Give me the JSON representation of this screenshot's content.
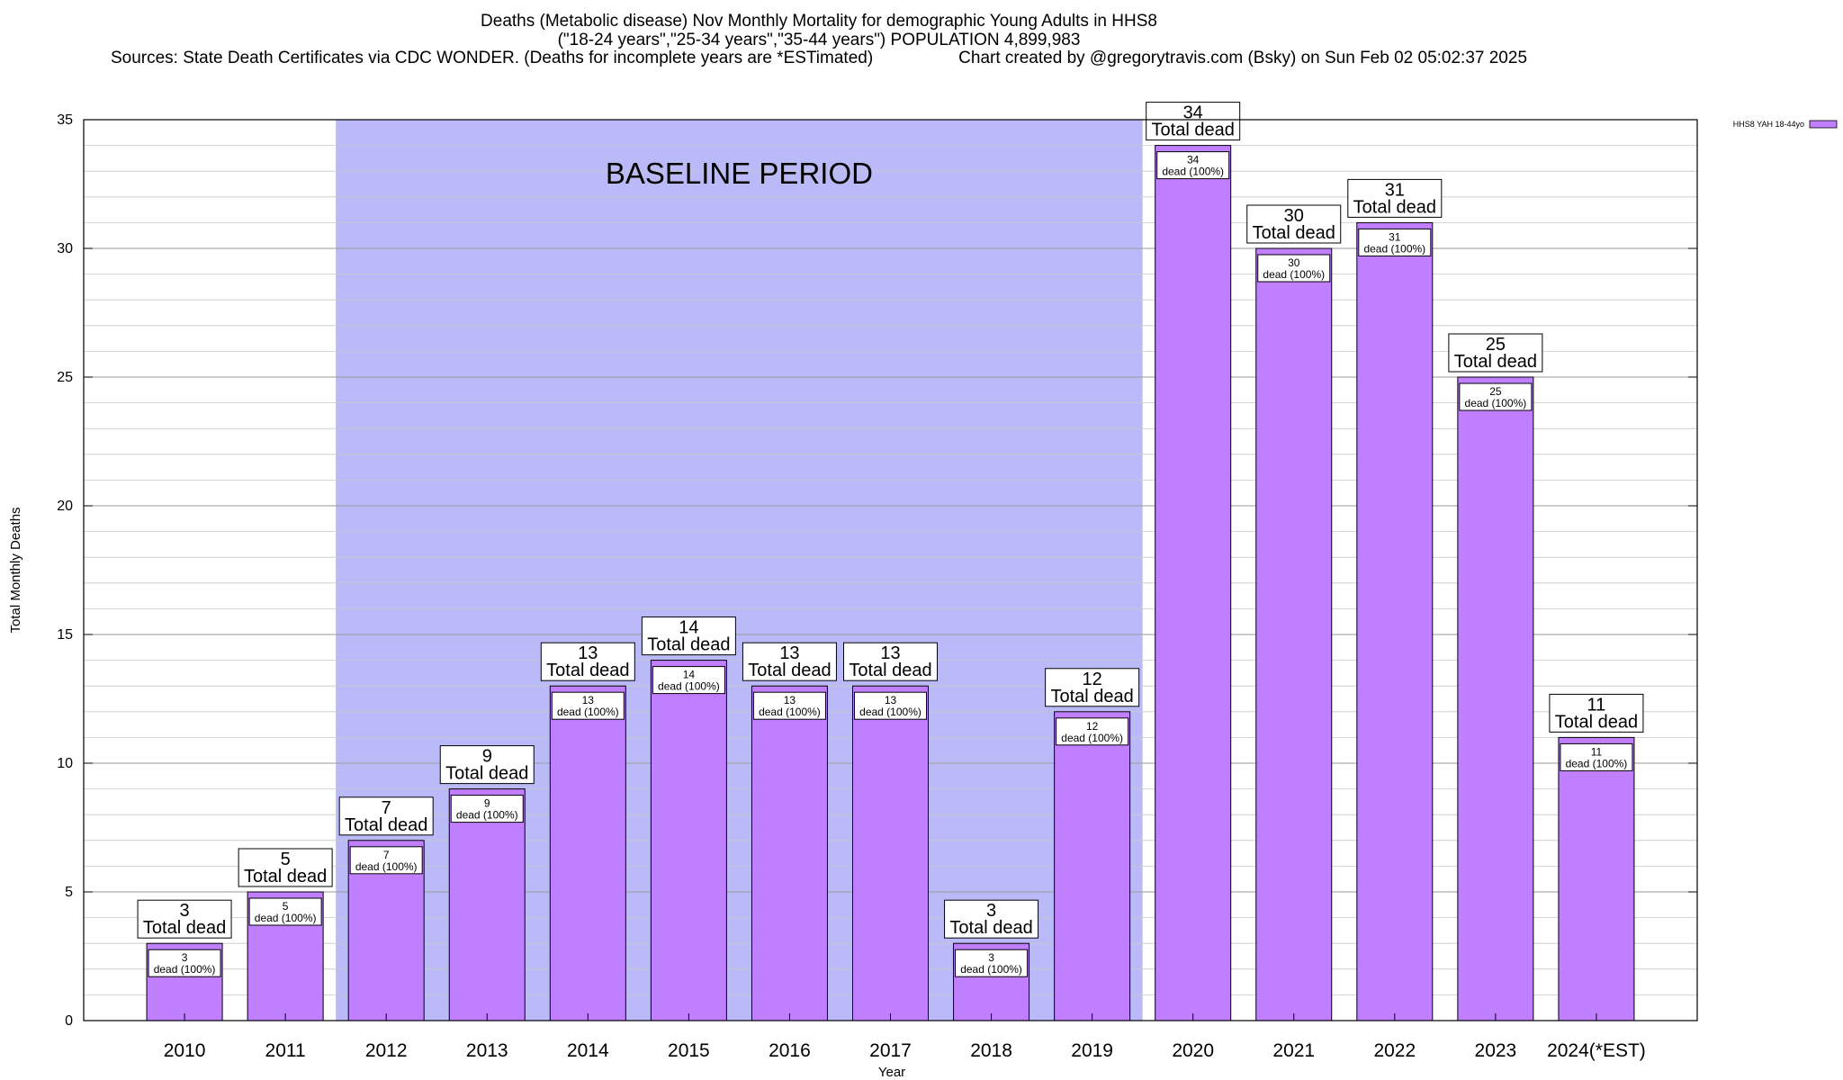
{
  "chart_data": {
    "type": "bar",
    "title": "Deaths (Metabolic disease) Nov Monthly Mortality for demographic Young Adults in HHS8",
    "subtitle": "(\"18-24 years\",\"25-34 years\",\"35-44 years\") POPULATION 4,899,983",
    "source_left": "Sources: State Death Certificates via CDC WONDER. (Deaths for incomplete years are *ESTimated)",
    "source_right": "Chart created by @gregorytravis.com (Bsky) on Sun Feb 02 05:02:37 2025",
    "xlabel": "Year",
    "ylabel": "Total Monthly Deaths",
    "ylim": [
      0,
      35
    ],
    "yticks": [
      0,
      5,
      10,
      15,
      20,
      25,
      30,
      35
    ],
    "grid": true,
    "categories": [
      "2010",
      "2011",
      "2012",
      "2013",
      "2014",
      "2015",
      "2016",
      "2017",
      "2018",
      "2019",
      "2020",
      "2021",
      "2022",
      "2023",
      "2024(*EST)"
    ],
    "series": [
      {
        "name": "HHS8 YAH 18-44yo",
        "color": "#bf7fff",
        "values": [
          3,
          5,
          7,
          9,
          13,
          14,
          13,
          13,
          3,
          12,
          34,
          30,
          31,
          25,
          11
        ]
      }
    ],
    "baseline": {
      "label": "BASELINE PERIOD",
      "start": "2012",
      "end": "2019",
      "color": "#babaf8"
    },
    "top_label_suffix": "Total dead",
    "inner_label_suffix": "dead (100%)",
    "legend_position": "top-right"
  }
}
